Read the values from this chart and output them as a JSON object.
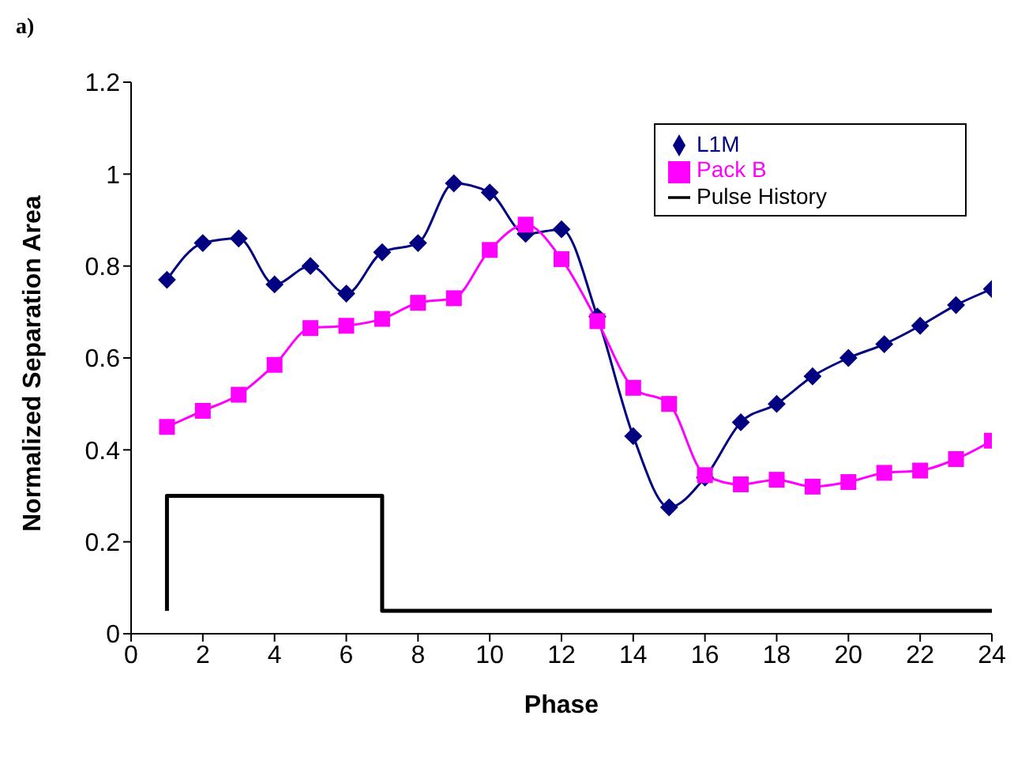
{
  "chart_data": {
    "type": "line",
    "xlabel": "Phase",
    "ylabel": "Normalized Separation Area",
    "annotations": [
      "a)"
    ],
    "xlim": [
      0,
      24
    ],
    "xticks": [
      0,
      2,
      4,
      6,
      8,
      10,
      12,
      14,
      16,
      18,
      20,
      22,
      24
    ],
    "ylim": [
      0,
      1.2
    ],
    "yticks": [
      0,
      0.2,
      0.4,
      0.6,
      0.8,
      1,
      1.2
    ],
    "grid": false,
    "legend": "top right",
    "series": [
      {
        "name": "L1M",
        "color": "#000080",
        "marker": "diamond",
        "x": [
          1,
          2,
          3,
          4,
          5,
          6,
          7,
          8,
          9,
          10,
          11,
          12,
          13,
          14,
          15,
          16,
          17,
          18,
          19,
          20,
          21,
          22,
          23,
          24
        ],
        "values": [
          0.77,
          0.85,
          0.86,
          0.76,
          0.8,
          0.74,
          0.83,
          0.85,
          0.98,
          0.96,
          0.87,
          0.88,
          0.69,
          0.43,
          0.275,
          0.34,
          0.46,
          0.5,
          0.56,
          0.6,
          0.63,
          0.67,
          0.715,
          0.75
        ]
      },
      {
        "name": "Pack B",
        "color": "#ff00ff",
        "marker": "square",
        "x": [
          1,
          2,
          3,
          4,
          5,
          6,
          7,
          8,
          9,
          10,
          11,
          12,
          13,
          14,
          15,
          16,
          17,
          18,
          19,
          20,
          21,
          22,
          23,
          24
        ],
        "values": [
          0.45,
          0.485,
          0.52,
          0.585,
          0.665,
          0.67,
          0.685,
          0.72,
          0.73,
          0.835,
          0.89,
          0.815,
          0.68,
          0.535,
          0.5,
          0.345,
          0.325,
          0.335,
          0.32,
          0.33,
          0.35,
          0.355,
          0.38,
          0.42
        ]
      },
      {
        "name": "Pulse History",
        "color": "#000000",
        "marker": "none",
        "x": [
          1,
          1,
          7,
          7,
          24
        ],
        "values": [
          0.05,
          0.3,
          0.3,
          0.05,
          0.05
        ]
      }
    ]
  }
}
